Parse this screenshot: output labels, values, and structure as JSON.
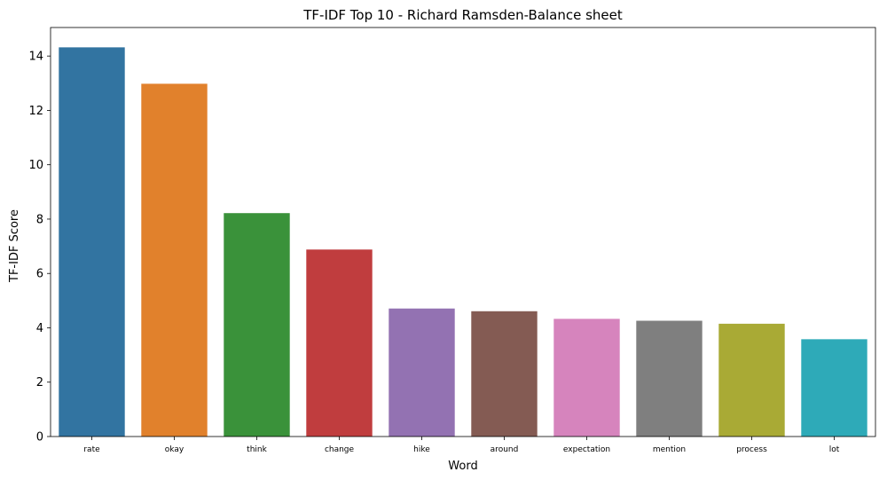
{
  "chart_data": {
    "type": "bar",
    "title": "TF-IDF Top 10 - Richard Ramsden-Balance sheet",
    "xlabel": "Word",
    "ylabel": "TF-IDF Score",
    "categories": [
      "rate",
      "okay",
      "think",
      "change",
      "hike",
      "around",
      "expectation",
      "mention",
      "process",
      "lot"
    ],
    "values": [
      14.32,
      12.98,
      8.22,
      6.88,
      4.71,
      4.61,
      4.33,
      4.26,
      4.15,
      3.58
    ],
    "ylim": [
      0,
      15.05
    ],
    "yticks": [
      0,
      2,
      4,
      6,
      8,
      10,
      12,
      14
    ],
    "colors": [
      "#3274a1",
      "#e1812c",
      "#3a923a",
      "#c03d3e",
      "#9372b2",
      "#845b53",
      "#d684bd",
      "#7f7f7f",
      "#a9aa35",
      "#2eaab8"
    ],
    "grid": false,
    "legend": "none"
  }
}
